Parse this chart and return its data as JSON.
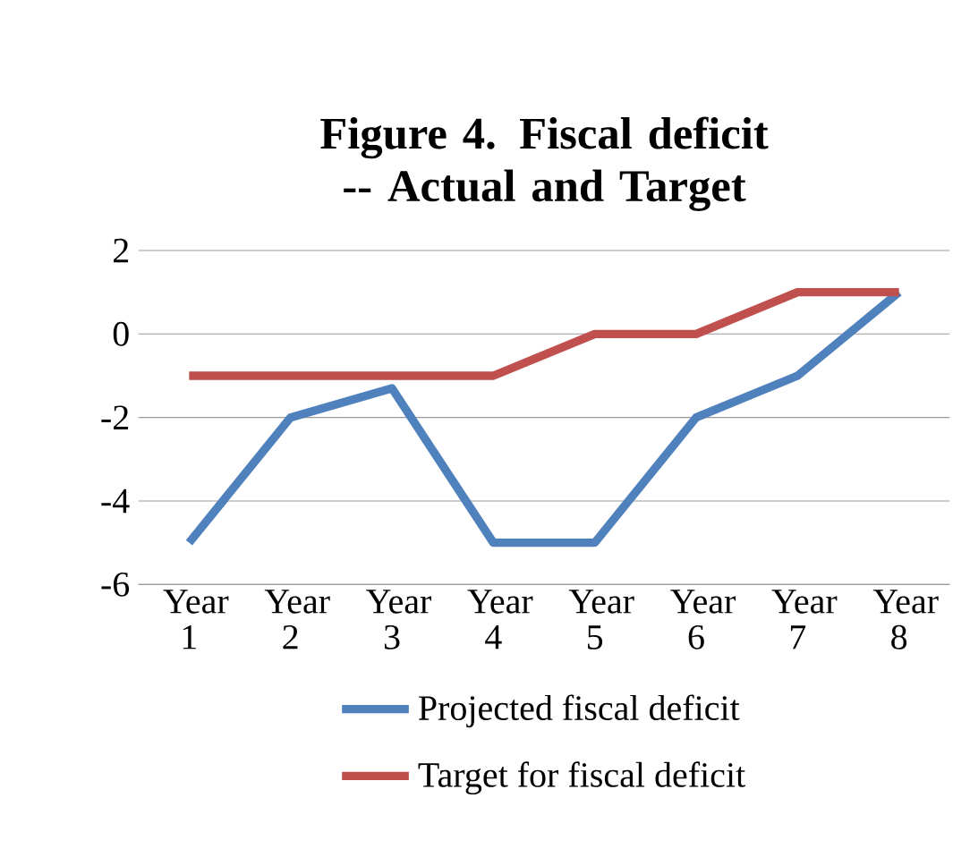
{
  "chart_data": {
    "type": "line",
    "title": "Figure 4. Fiscal deficit -- Actual and Target",
    "categories": [
      "Year 1",
      "Year 2",
      "Year 3",
      "Year 4",
      "Year 5",
      "Year 6",
      "Year 7",
      "Year 8"
    ],
    "series": [
      {
        "name": "Projected fiscal deficit",
        "color": "#4f81bd",
        "values": [
          -5,
          -2,
          -1.3,
          -5,
          -5,
          -2,
          -1,
          1
        ]
      },
      {
        "name": "Target for fiscal deficit",
        "color": "#c0504d",
        "values": [
          -1,
          -1,
          -1,
          -1,
          0,
          0,
          1,
          1
        ]
      }
    ],
    "ylim": [
      -6,
      2
    ],
    "yticks": [
      2,
      0,
      -2,
      -4,
      -6
    ],
    "grid": "y",
    "legend": "bottom",
    "marker": "none",
    "line_style": "solid"
  }
}
